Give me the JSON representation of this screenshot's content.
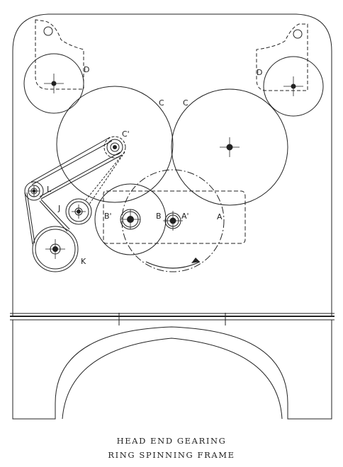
{
  "caption": {
    "line1": "HEAD END GEARING",
    "line2": "RING SPINNING FRAME"
  },
  "labels": {
    "D_left": "D",
    "D_right": "D",
    "C_left": "C",
    "C_right": "C",
    "C_prime": "C'",
    "L": "L",
    "J": "J",
    "K": "K",
    "B_prime": "B'",
    "B": "B",
    "A_prime": "A'",
    "A": "A"
  },
  "colors": {
    "ink": "#222222",
    "paper": "#ffffff"
  }
}
